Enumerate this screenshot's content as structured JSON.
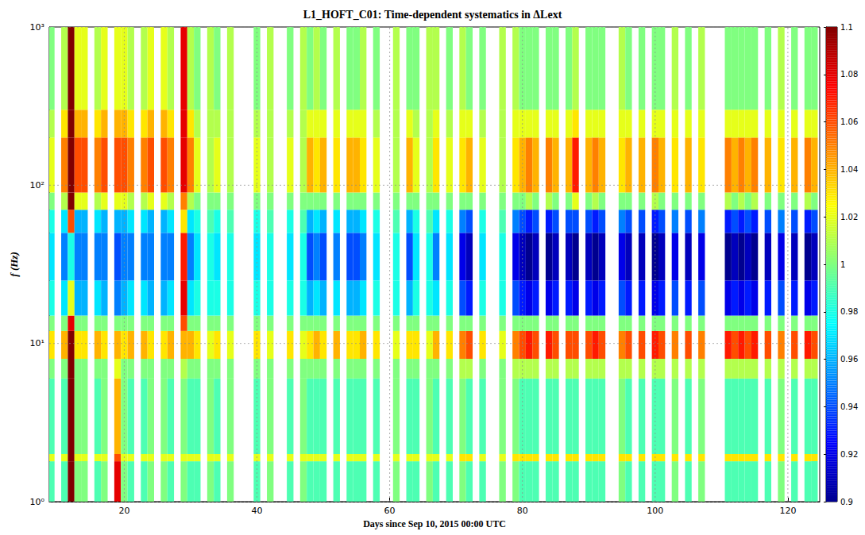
{
  "chart_data": {
    "type": "heatmap",
    "title": "L1_HOFT_C01: Time-dependent systematics in ΔLext",
    "x_label": "Days since Sep 10, 2015 00:00 UTC",
    "y_label": "f (Hz)",
    "x": [
      9,
      10,
      11,
      12,
      13,
      14,
      15,
      16,
      17,
      18,
      19,
      20,
      21,
      22,
      23,
      24,
      25,
      26,
      27,
      28,
      29,
      30,
      31,
      32,
      33,
      34,
      35,
      36,
      37,
      38,
      39,
      40,
      41,
      42,
      43,
      44,
      45,
      46,
      47,
      48,
      49,
      50,
      51,
      52,
      53,
      54,
      55,
      56,
      57,
      58,
      59,
      60,
      61,
      62,
      63,
      64,
      65,
      66,
      67,
      68,
      69,
      70,
      71,
      72,
      73,
      74,
      75,
      76,
      77,
      78,
      79,
      80,
      81,
      82,
      83,
      84,
      85,
      86,
      87,
      88,
      89,
      90,
      91,
      92,
      93,
      94,
      95,
      96,
      97,
      98,
      99,
      100,
      101,
      102,
      103,
      104,
      105,
      106,
      107,
      108,
      109,
      110,
      111,
      112,
      113,
      114,
      115,
      116,
      117,
      118,
      119,
      120,
      121,
      122,
      123,
      124
    ],
    "y_edges": [
      1,
      1.8,
      2,
      6,
      8,
      12,
      15,
      25,
      50,
      70,
      90,
      200,
      300,
      1000
    ],
    "values": [
      [
        0.99,
        1.02,
        0.99,
        1,
        1.03,
        1,
        0.98,
        0.97,
        0.98,
        1,
        1.02,
        1.01,
        1
      ],
      null,
      [
        0.99,
        1.02,
        0.99,
        1,
        1.04,
        1,
        0.97,
        0.95,
        0.97,
        1.01,
        1.05,
        1.03,
        1.01
      ],
      [
        1.1,
        1.1,
        1.1,
        1.1,
        1.1,
        1.08,
        1.02,
        0.98,
        1.06,
        1.1,
        1.1,
        1.1,
        1.1
      ],
      [
        1,
        1.02,
        1,
        1,
        1.03,
        1,
        0.96,
        0.95,
        0.96,
        1.02,
        1.06,
        1.04,
        1.02
      ],
      [
        1,
        1.02,
        1,
        1,
        1.03,
        1,
        0.96,
        0.95,
        0.96,
        1.02,
        1.06,
        1.04,
        1.02
      ],
      null,
      [
        0.99,
        1.02,
        0.99,
        1,
        1.04,
        1,
        0.97,
        0.95,
        0.97,
        1.01,
        1.05,
        1.03,
        1.01
      ],
      [
        1,
        1.02,
        1,
        1,
        1.03,
        1,
        0.96,
        0.95,
        0.96,
        1.02,
        1.06,
        1.04,
        1.02
      ],
      null,
      [
        1.08,
        1.06,
        1.04,
        1.02,
        1.04,
        1,
        0.95,
        0.94,
        0.96,
        1.02,
        1.06,
        1.04,
        1.02
      ],
      [
        1,
        1.02,
        1,
        1,
        1.03,
        1,
        0.96,
        0.95,
        0.96,
        1.02,
        1.06,
        1.04,
        1.02
      ],
      [
        0.99,
        1.02,
        0.99,
        1,
        1.04,
        1,
        0.97,
        0.95,
        0.97,
        1.01,
        1.05,
        1.03,
        1.01
      ],
      null,
      [
        0.99,
        1.02,
        0.99,
        1,
        1.04,
        1,
        0.97,
        0.95,
        0.97,
        1.01,
        1.05,
        1.03,
        1.01
      ],
      [
        1,
        1.02,
        1,
        1,
        1.03,
        1,
        0.96,
        0.95,
        0.96,
        1.02,
        1.06,
        1.04,
        1.02
      ],
      null,
      [
        1,
        1.02,
        1,
        1,
        1.03,
        1,
        0.96,
        0.95,
        0.96,
        1.02,
        1.06,
        1.04,
        1.02
      ],
      [
        0.99,
        1.02,
        0.99,
        1,
        1.04,
        1,
        0.97,
        0.95,
        0.97,
        1.01,
        1.05,
        1.03,
        1.01
      ],
      null,
      [
        1,
        1.02,
        1,
        1.01,
        1.04,
        1.06,
        1.08,
        1.07,
        1.03,
        1.05,
        1.08,
        1.08,
        1.08
      ],
      [
        0.99,
        1.02,
        0.99,
        1,
        1.04,
        1,
        0.97,
        0.95,
        0.97,
        1.01,
        1.05,
        1.03,
        1.01
      ],
      [
        0.99,
        1.02,
        0.99,
        1,
        1.03,
        1,
        0.98,
        0.97,
        0.98,
        1,
        1.02,
        1.01,
        1
      ],
      null,
      [
        1,
        1.02,
        1,
        1,
        1.02,
        1,
        0.98,
        0.98,
        0.99,
        1,
        1.01,
        1.01,
        1.01
      ],
      [
        0.99,
        1.02,
        0.99,
        1,
        1.03,
        1,
        0.98,
        0.97,
        0.98,
        1,
        1.02,
        1.01,
        1
      ],
      null,
      [
        1,
        1.02,
        1,
        1,
        1.02,
        1,
        0.98,
        0.98,
        0.99,
        1,
        1.01,
        1.01,
        1.01
      ],
      null,
      null,
      null,
      [
        0.99,
        1.02,
        0.99,
        1,
        1.03,
        1,
        0.98,
        0.97,
        0.98,
        1,
        1.02,
        1.01,
        1
      ],
      null,
      [
        1,
        1.02,
        1,
        1,
        1.02,
        1,
        0.98,
        0.98,
        0.99,
        1,
        1.01,
        1.01,
        1.01
      ],
      null,
      null,
      [
        0.99,
        1.02,
        0.99,
        1,
        1.03,
        1,
        0.98,
        0.97,
        0.98,
        1,
        1.02,
        1.01,
        1
      ],
      null,
      [
        1,
        1.02,
        1,
        1,
        1.02,
        1,
        0.98,
        0.98,
        0.99,
        1,
        1.01,
        1.01,
        1.01
      ],
      [
        0.99,
        1.02,
        0.99,
        1,
        1.03,
        1,
        0.96,
        0.94,
        0.96,
        1,
        1.04,
        1.02,
        1
      ],
      [
        0.99,
        1.02,
        0.99,
        1,
        1.04,
        1,
        0.97,
        0.95,
        0.97,
        1,
        1.03,
        1.02,
        1.01
      ],
      [
        0.99,
        1.02,
        0.99,
        1,
        1.03,
        1,
        0.96,
        0.94,
        0.96,
        1,
        1.04,
        1.02,
        1
      ],
      null,
      [
        0.99,
        1.02,
        0.99,
        1,
        1.04,
        1,
        0.97,
        0.95,
        0.97,
        1,
        1.03,
        1.02,
        1.01
      ],
      null,
      [
        0.99,
        1.02,
        0.99,
        1,
        1.03,
        1,
        0.96,
        0.94,
        0.96,
        1,
        1.04,
        1.02,
        1
      ],
      [
        0.99,
        1.02,
        0.99,
        1,
        1.03,
        1,
        0.96,
        0.94,
        0.96,
        1,
        1.04,
        1.02,
        1
      ],
      [
        0.99,
        1.02,
        0.99,
        1,
        1.04,
        1,
        0.97,
        0.95,
        0.97,
        1,
        1.03,
        1.02,
        1.01
      ],
      null,
      [
        0.99,
        1.02,
        0.99,
        1,
        1.03,
        1,
        0.98,
        0.97,
        0.98,
        1,
        1.02,
        1.01,
        1
      ],
      null,
      null,
      [
        1,
        1.02,
        1,
        1,
        1.02,
        1,
        0.98,
        0.98,
        0.99,
        1,
        1.01,
        1.01,
        1.01
      ],
      null,
      [
        0.99,
        1.02,
        0.99,
        1,
        1.03,
        1,
        0.96,
        0.94,
        0.96,
        1,
        1.04,
        1.02,
        1
      ],
      [
        0.99,
        1.02,
        0.99,
        1,
        1.03,
        1,
        0.98,
        0.97,
        0.98,
        1,
        1.02,
        1.01,
        1
      ],
      null,
      [
        1,
        1.02,
        1,
        1,
        1.02,
        1,
        0.98,
        0.98,
        0.99,
        1,
        1.01,
        1.01,
        1.01
      ],
      [
        0.99,
        1.02,
        0.99,
        1,
        1.04,
        1,
        0.97,
        0.95,
        0.97,
        1,
        1.03,
        1.02,
        1.01
      ],
      null,
      [
        0.99,
        1.02,
        0.99,
        1,
        1.03,
        1,
        0.98,
        0.97,
        0.98,
        1,
        1.02,
        1.01,
        1
      ],
      null,
      [
        1,
        1.03,
        1,
        1.01,
        1.05,
        1,
        0.94,
        0.92,
        0.95,
        1,
        1.03,
        1.02,
        1.01
      ],
      [
        0.99,
        1.03,
        0.99,
        1.01,
        1.06,
        1,
        0.93,
        0.91,
        0.94,
        1,
        1.04,
        1.02,
        1
      ],
      null,
      [
        0.99,
        1.02,
        0.99,
        1,
        1.03,
        1,
        0.98,
        0.97,
        0.98,
        1,
        1.02,
        1.01,
        1
      ],
      null,
      null,
      [
        1,
        1.02,
        1,
        1,
        1.02,
        1,
        0.98,
        0.98,
        0.99,
        1,
        1.01,
        1.01,
        1.01
      ],
      null,
      [
        1,
        1.03,
        1,
        1.01,
        1.05,
        1,
        0.94,
        0.92,
        0.95,
        1,
        1.03,
        1.02,
        1.01
      ],
      [
        0.99,
        1.03,
        0.99,
        1.01,
        1.06,
        1,
        0.93,
        0.91,
        0.94,
        1,
        1.04,
        1.02,
        1
      ],
      [
        0.99,
        1.03,
        0.99,
        1.01,
        1.07,
        1,
        0.92,
        0.9,
        0.93,
        1.01,
        1.05,
        1.02,
        1
      ],
      [
        0.99,
        1.03,
        0.99,
        1.01,
        1.06,
        1,
        0.93,
        0.91,
        0.94,
        1,
        1.04,
        1.02,
        1
      ],
      null,
      [
        0.99,
        1.03,
        0.99,
        1.01,
        1.07,
        1,
        0.92,
        0.9,
        0.93,
        1.01,
        1.05,
        1.02,
        1
      ],
      [
        0.99,
        1.03,
        0.99,
        1.01,
        1.06,
        1,
        0.93,
        0.91,
        0.94,
        1,
        1.04,
        1.02,
        1
      ],
      null,
      [
        0.99,
        1.03,
        0.99,
        1.01,
        1.06,
        1,
        0.93,
        0.91,
        0.94,
        1,
        1.04,
        1.02,
        1
      ],
      [
        0.99,
        1.03,
        0.99,
        1.01,
        1.06,
        1,
        0.92,
        0.9,
        0.94,
        1.02,
        1.07,
        1.03,
        1.01
      ],
      null,
      [
        0.99,
        1.03,
        0.99,
        1.01,
        1.06,
        1,
        0.93,
        0.91,
        0.94,
        1,
        1.04,
        1.02,
        1
      ],
      [
        0.99,
        1.03,
        0.99,
        1.01,
        1.07,
        1,
        0.92,
        0.9,
        0.93,
        1.01,
        1.05,
        1.02,
        1
      ],
      [
        0.99,
        1.03,
        0.99,
        1.01,
        1.06,
        1,
        0.93,
        0.91,
        0.94,
        1,
        1.04,
        1.02,
        1
      ],
      null,
      null,
      [
        1,
        1.03,
        1,
        1.01,
        1.05,
        1,
        0.94,
        0.92,
        0.95,
        1,
        1.03,
        1.02,
        1.01
      ],
      [
        0.99,
        1.03,
        0.99,
        1.01,
        1.06,
        1,
        0.93,
        0.91,
        0.94,
        1,
        1.04,
        1.02,
        1
      ],
      null,
      [
        0.99,
        1.03,
        0.99,
        1.01,
        1.06,
        1,
        0.93,
        0.91,
        0.94,
        1,
        1.04,
        1.02,
        1
      ],
      null,
      [
        0.99,
        1.03,
        0.99,
        1.01,
        1.07,
        1,
        0.92,
        0.9,
        0.93,
        1.01,
        1.05,
        1.02,
        1
      ],
      [
        0.99,
        1.03,
        0.99,
        1.01,
        1.06,
        1,
        0.93,
        0.91,
        0.94,
        1,
        1.04,
        1.02,
        1
      ],
      null,
      [
        1,
        1.03,
        1,
        1.01,
        1.05,
        1,
        0.94,
        0.92,
        0.95,
        1,
        1.03,
        1.02,
        1.01
      ],
      null,
      [
        0.99,
        1.03,
        0.99,
        1.01,
        1.06,
        1,
        0.93,
        0.91,
        0.94,
        1,
        1.04,
        1.02,
        1
      ],
      null,
      [
        1,
        1.03,
        1,
        1.01,
        1.05,
        1,
        0.94,
        0.92,
        0.95,
        1,
        1.03,
        1.02,
        1.01
      ],
      null,
      null,
      null,
      [
        0.99,
        1.03,
        0.99,
        1.01,
        1.07,
        1,
        0.92,
        0.9,
        0.93,
        1.01,
        1.05,
        1.02,
        1
      ],
      [
        0.99,
        1.03,
        0.99,
        1.01,
        1.06,
        1,
        0.93,
        0.91,
        0.94,
        1,
        1.04,
        1.02,
        1
      ],
      [
        0.99,
        1.03,
        0.99,
        1.01,
        1.07,
        1,
        0.92,
        0.9,
        0.93,
        1.01,
        1.05,
        1.02,
        1
      ],
      [
        0.99,
        1.03,
        0.99,
        1.01,
        1.06,
        1,
        0.93,
        0.91,
        0.94,
        1,
        1.04,
        1.02,
        1
      ],
      [
        0.99,
        1.03,
        0.99,
        1.01,
        1.07,
        1,
        0.92,
        0.9,
        0.93,
        1.01,
        1.05,
        1.02,
        1
      ],
      null,
      [
        0.99,
        1.03,
        0.99,
        1.01,
        1.06,
        1,
        0.93,
        0.91,
        0.94,
        1,
        1.04,
        1.02,
        1
      ],
      null,
      [
        1,
        1.03,
        1,
        1.01,
        1.05,
        1,
        0.94,
        0.92,
        0.95,
        1,
        1.03,
        1.02,
        1.01
      ],
      null,
      [
        0.99,
        1.03,
        0.99,
        1.01,
        1.06,
        1,
        0.93,
        0.91,
        0.94,
        1,
        1.04,
        1.02,
        1
      ],
      null,
      [
        0.99,
        1.03,
        0.99,
        1.01,
        1.07,
        1,
        0.92,
        0.9,
        0.93,
        1.01,
        1.05,
        1.02,
        1
      ],
      [
        0.99,
        1.03,
        0.99,
        1.01,
        1.06,
        1,
        0.93,
        0.91,
        0.94,
        1,
        1.04,
        1.02,
        1
      ]
    ],
    "xlim": [
      8.7,
      124.8
    ],
    "xticks": [
      20,
      40,
      60,
      80,
      100,
      120
    ],
    "ylim": [
      1,
      1000
    ],
    "yticks": [
      {
        "value": 1,
        "label": "10⁰"
      },
      {
        "value": 10,
        "label": "10¹"
      },
      {
        "value": 100,
        "label": "10²"
      },
      {
        "value": 1000,
        "label": "10³"
      }
    ],
    "log": "y",
    "grid": true,
    "colorbar": {
      "range": [
        0.9,
        1.1
      ],
      "ticks": [
        0.9,
        0.92,
        0.94,
        0.96,
        0.98,
        1,
        1.02,
        1.04,
        1.06,
        1.08,
        1.1
      ],
      "colors": [
        "#00008f",
        "#0000ff",
        "#0080ff",
        "#00ffff",
        "#80ff80",
        "#ffff00",
        "#ff8000",
        "#ff0000",
        "#800000"
      ]
    }
  }
}
